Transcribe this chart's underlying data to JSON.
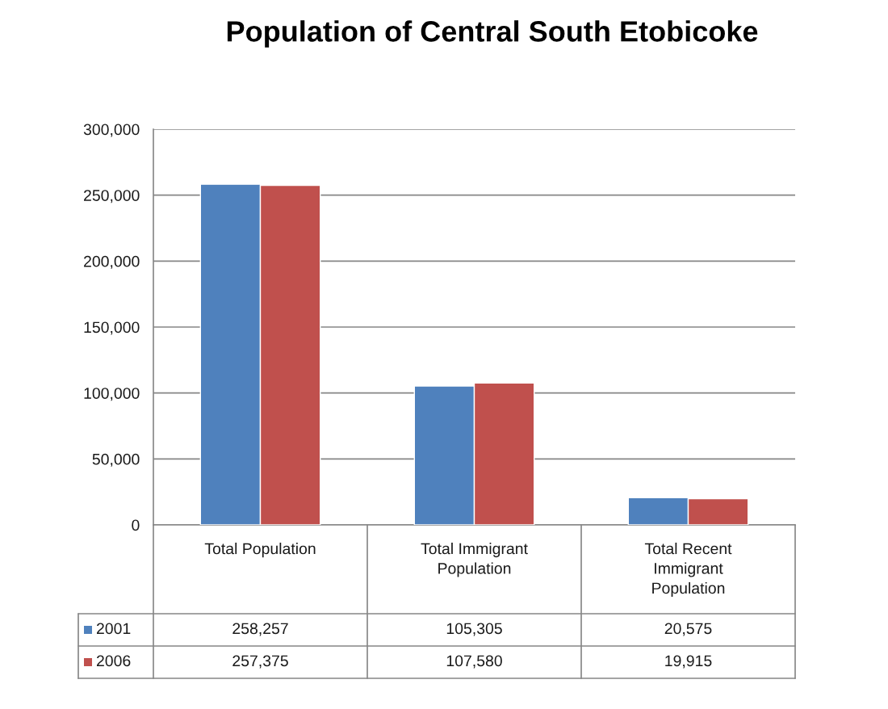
{
  "chart_data": {
    "type": "bar",
    "title": "Population of Central South Etobicoke",
    "categories": [
      "Total Population",
      "Total Immigrant Population",
      "Total Recent Immigrant Population"
    ],
    "series": [
      {
        "name": "2001",
        "color": "#4f81bd",
        "values": [
          258257,
          105305,
          20575
        ],
        "value_labels": [
          "258,257",
          "105,305",
          "20,575"
        ]
      },
      {
        "name": "2006",
        "color": "#c0504d",
        "values": [
          257375,
          107580,
          19915
        ],
        "value_labels": [
          "257,375",
          "107,580",
          "19,915"
        ]
      }
    ],
    "ylim": [
      0,
      300000
    ],
    "yticks": [
      0,
      {
        "value": 50000,
        "label": "50,000"
      },
      {
        "value": 100000,
        "label": "100,000"
      },
      {
        "value": 150000,
        "label": "150,000"
      },
      {
        "value": 200000,
        "label": "200,000"
      },
      {
        "value": 250000,
        "label": "250,000"
      },
      {
        "value": 300000,
        "label": "300,000"
      }
    ],
    "grid": "y",
    "legend": "bottom"
  }
}
